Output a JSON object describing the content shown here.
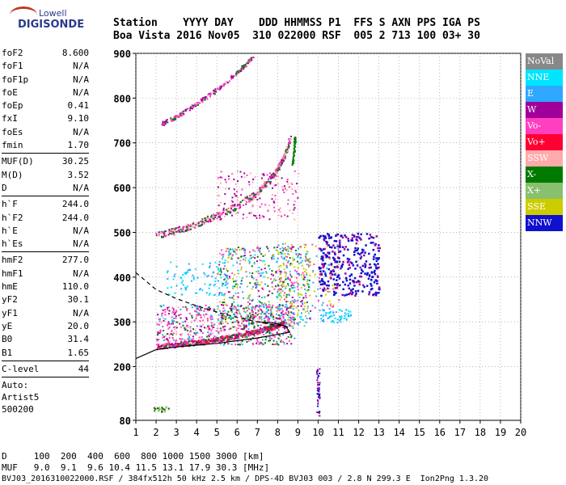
{
  "logo": {
    "top": "Lowell",
    "bottom": "DIGISONDE"
  },
  "header": {
    "line1": "Station    YYYY DAY    DDD HHMMSS P1  FFS S AXN PPS IGA PS",
    "line2": "Boa Vista 2016 Nov05  310 022000 RSF  005 2 713 100 03+ 30"
  },
  "params": {
    "group1": [
      {
        "name": "foF2",
        "value": "8.600"
      },
      {
        "name": "foF1",
        "value": "N/A"
      },
      {
        "name": "foF1p",
        "value": "N/A"
      },
      {
        "name": "foE",
        "value": "N/A"
      },
      {
        "name": "foEp",
        "value": "0.41"
      },
      {
        "name": "fxI",
        "value": "9.10"
      },
      {
        "name": "foEs",
        "value": "N/A"
      },
      {
        "name": "fmin",
        "value": "1.70"
      }
    ],
    "group2": [
      {
        "name": "MUF(D)",
        "value": "30.25"
      },
      {
        "name": "M(D)",
        "value": "3.52"
      },
      {
        "name": "D",
        "value": "N/A"
      }
    ],
    "group3": [
      {
        "name": "h`F",
        "value": "244.0"
      },
      {
        "name": "h`F2",
        "value": "244.0"
      },
      {
        "name": "h`E",
        "value": "N/A"
      },
      {
        "name": "h`Es",
        "value": "N/A"
      }
    ],
    "group4": [
      {
        "name": "hmF2",
        "value": "277.0"
      },
      {
        "name": "hmF1",
        "value": "N/A"
      },
      {
        "name": "hmE",
        "value": "110.0"
      },
      {
        "name": "yF2",
        "value": "30.1"
      },
      {
        "name": "yF1",
        "value": "N/A"
      },
      {
        "name": "yE",
        "value": "20.0"
      },
      {
        "name": "B0",
        "value": "31.4"
      },
      {
        "name": "B1",
        "value": "1.65"
      }
    ],
    "group5": [
      {
        "name": "C-level",
        "value": "44"
      }
    ],
    "auto": [
      "Auto:",
      "Artist5",
      "500200"
    ]
  },
  "bottom": {
    "d_row": "D     100  200  400  600  800 1000 1500 3000 [km]",
    "muf_row": "MUF   9.0  9.1  9.6 10.4 11.5 13.1 17.9 30.3 [MHz]",
    "footer": "BVJ03_2016310022000.RSF / 384fx512h 50 kHz 2.5 km / DPS-4D BVJ03 003 / 2.8 N 299.3 E  Ion2Png 1.3.20"
  },
  "legend": [
    {
      "label": "NoVal",
      "color": "#888888"
    },
    {
      "label": "NNE",
      "color": "#00e5ff"
    },
    {
      "label": "E",
      "color": "#2ea8ff"
    },
    {
      "label": "W",
      "color": "#a0009a"
    },
    {
      "label": "Vo-",
      "color": "#ff3fbf"
    },
    {
      "label": "Vo+",
      "color": "#ff0033"
    },
    {
      "label": "SSW",
      "color": "#ffaaaa"
    },
    {
      "label": "X-",
      "color": "#007a00"
    },
    {
      "label": "X+",
      "color": "#88c070"
    },
    {
      "label": "SSE",
      "color": "#cccc00"
    },
    {
      "label": "NNW",
      "color": "#1010d0"
    }
  ],
  "chart_data": {
    "type": "scatter",
    "xlim": [
      1,
      20
    ],
    "ylim": [
      80,
      900
    ],
    "x_ticks": [
      1,
      2,
      3,
      4,
      5,
      6,
      7,
      8,
      9,
      10,
      11,
      12,
      13,
      14,
      15,
      16,
      17,
      18,
      19,
      20
    ],
    "y_ticks": [
      80,
      200,
      300,
      400,
      500,
      600,
      700,
      800,
      900
    ],
    "grid": true,
    "o_trace_f2": [
      [
        2.0,
        245
      ],
      [
        3.0,
        250
      ],
      [
        4.0,
        255
      ],
      [
        5.0,
        262
      ],
      [
        6.0,
        270
      ],
      [
        7.0,
        280
      ],
      [
        7.8,
        290
      ],
      [
        8.3,
        300
      ]
    ],
    "multi_2hop": [
      [
        2.0,
        495
      ],
      [
        3.0,
        505
      ],
      [
        4.0,
        520
      ],
      [
        5.0,
        540
      ],
      [
        6.0,
        560
      ],
      [
        7.0,
        590
      ],
      [
        7.8,
        630
      ],
      [
        8.3,
        670
      ],
      [
        8.6,
        710
      ]
    ],
    "multi_3hop": [
      [
        2.3,
        745
      ],
      [
        3.0,
        760
      ],
      [
        4.0,
        790
      ],
      [
        5.0,
        820
      ],
      [
        6.0,
        860
      ],
      [
        6.8,
        895
      ]
    ],
    "profile_solid": [
      [
        1.0,
        218
      ],
      [
        2.0,
        238
      ],
      [
        3.0,
        244
      ],
      [
        4.0,
        248
      ],
      [
        5.0,
        252
      ],
      [
        6.0,
        258
      ],
      [
        7.0,
        264
      ],
      [
        8.0,
        272
      ],
      [
        8.6,
        277
      ],
      [
        8.4,
        290
      ],
      [
        7.8,
        298
      ],
      [
        7.0,
        300
      ]
    ],
    "profile_dashed": [
      [
        1.0,
        410
      ],
      [
        2.0,
        372
      ],
      [
        3.0,
        352
      ],
      [
        4.0,
        336
      ],
      [
        5.0,
        322
      ],
      [
        6.0,
        310
      ],
      [
        7.0,
        300
      ],
      [
        8.0,
        292
      ],
      [
        8.6,
        288
      ]
    ],
    "nnw_cluster": {
      "x": [
        10.0,
        13.0
      ],
      "y": [
        360,
        500
      ]
    },
    "sse_cluster": {
      "x": [
        8.0,
        11.0
      ],
      "y": [
        330,
        480
      ]
    }
  }
}
